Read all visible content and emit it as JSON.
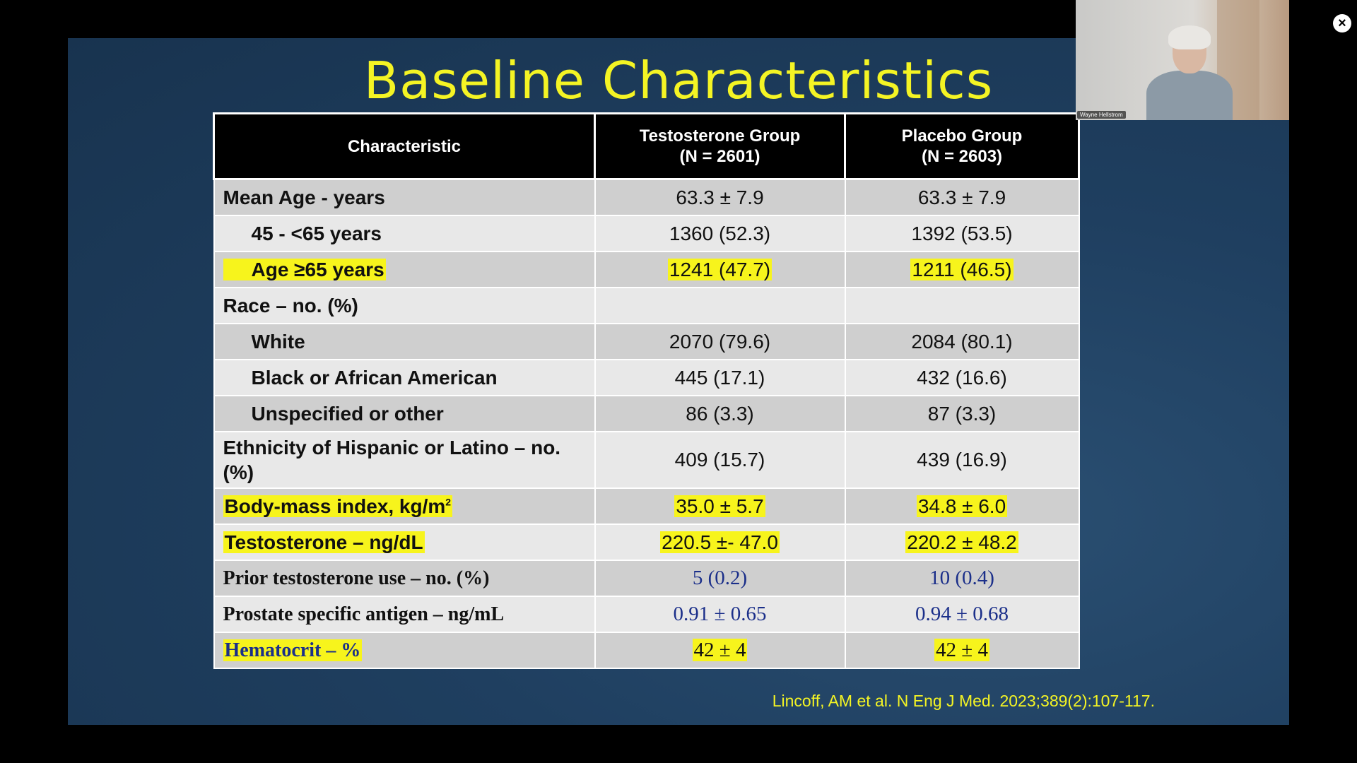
{
  "slide": {
    "title": "Baseline Characteristics",
    "citation": "Lincoff, AM et al. N Eng J Med. 2023;389(2):107-117."
  },
  "table": {
    "header": {
      "characteristic": "Characteristic",
      "group1_name": "Testosterone Group",
      "group1_n": "(N = 2601)",
      "group2_name": "Placebo Group",
      "group2_n": "(N = 2603)"
    },
    "rows": [
      {
        "label": "Mean Age - years",
        "testosterone": "63.3 ± 7.9",
        "placebo": "63.3 ± 7.9"
      },
      {
        "label": "45 - <65 years",
        "testosterone": "1360 (52.3)",
        "placebo": "1392 (53.5)"
      },
      {
        "label": "Age ≥65 years",
        "testosterone": "1241 (47.7)",
        "placebo": "1211 (46.5)"
      },
      {
        "label": "Race – no. (%)",
        "testosterone": "",
        "placebo": ""
      },
      {
        "label": "White",
        "testosterone": "2070 (79.6)",
        "placebo": "2084 (80.1)"
      },
      {
        "label": "Black or African American",
        "testosterone": "445 (17.1)",
        "placebo": "432 (16.6)"
      },
      {
        "label": "Unspecified or other",
        "testosterone": "86 (3.3)",
        "placebo": "87 (3.3)"
      },
      {
        "label": "Ethnicity of Hispanic or Latino – no. (%)",
        "testosterone": "409 (15.7)",
        "placebo": "439 (16.9)"
      },
      {
        "label": "Body-mass index, kg/m",
        "label_sup": "2",
        "testosterone": "35.0 ± 5.7",
        "placebo": "34.8 ± 6.0"
      },
      {
        "label": "Testosterone – ng/dL",
        "testosterone": "220.5 ±- 47.0",
        "placebo": "220.2 ± 48.2"
      },
      {
        "label": "Prior testosterone use – no. (%)",
        "testosterone": "5 (0.2)",
        "placebo": "10 (0.4)"
      },
      {
        "label": "Prostate specific antigen – ng/mL",
        "testosterone": "0.91 ± 0.65",
        "placebo": "0.94 ± 0.68"
      },
      {
        "label": "Hematocrit – %",
        "testosterone": "42 ± 4",
        "placebo": "42 ± 4"
      }
    ]
  },
  "video": {
    "participant_name": "Wayne Hellstrom"
  },
  "controls": {
    "close_symbol": "×"
  },
  "colors": {
    "title": "#f4f424",
    "highlight": "#f7f41c",
    "serif_values": "#1b2f8a",
    "slide_background": "#1f3f60"
  }
}
